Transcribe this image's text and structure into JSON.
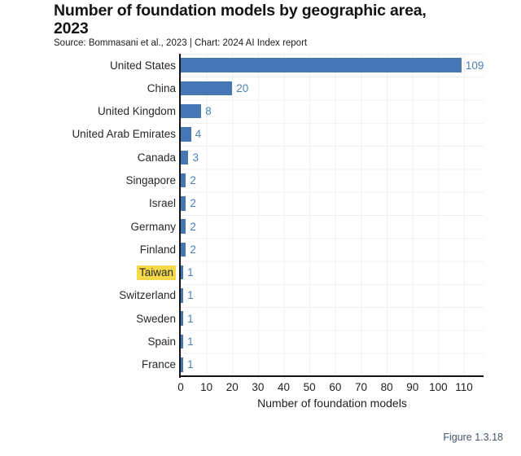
{
  "header": {
    "title_line1": "Number of foundation models by geographic area,",
    "title_line2": "2023",
    "source": "Source: Bommasani et al., 2023 | Chart: 2024 AI Index report"
  },
  "chart_data": {
    "type": "bar",
    "orientation": "horizontal",
    "title": "Number of foundation models by geographic area, 2023",
    "source": "Source: Bommasani et al., 2023 | Chart: 2024 AI Index report",
    "categories": [
      "United States",
      "China",
      "United Kingdom",
      "United Arab Emirates",
      "Canada",
      "Singapore",
      "Israel",
      "Germany",
      "Finland",
      "Taiwan",
      "Switzerland",
      "Sweden",
      "Spain",
      "France"
    ],
    "values": [
      109,
      20,
      8,
      4,
      3,
      2,
      2,
      2,
      2,
      1,
      1,
      1,
      1,
      1
    ],
    "highlighted_category": "Taiwan",
    "xlabel": "Number of foundation models",
    "ylabel": "",
    "xticks": [
      0,
      10,
      20,
      30,
      40,
      50,
      60,
      70,
      80,
      90,
      100,
      110
    ],
    "xlim": [
      0,
      118
    ],
    "grid": true,
    "value_labels": true,
    "legend": false,
    "colors": {
      "bar": "#4577b4",
      "value_label": "#4d80ba",
      "highlight": "#f5d94b",
      "axis": "#141414",
      "gridline": "#efefef"
    }
  },
  "footer": {
    "figure_label": "Figure 1.3.18"
  },
  "edge_artifact": {
    "clipped_text": "y"
  }
}
